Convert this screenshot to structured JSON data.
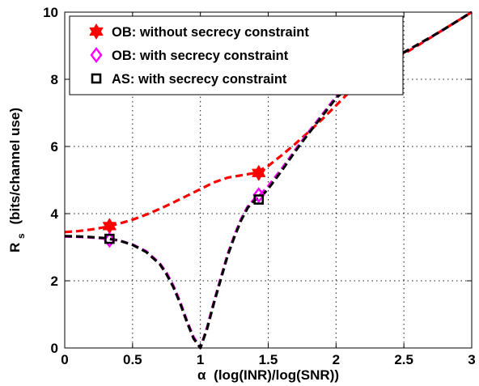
{
  "chart_data": {
    "type": "line",
    "xlabel_symbol": "α",
    "xlabel": "(log(INR)/log(SNR))",
    "ylabel_main": "R",
    "ylabel_sub": "s",
    "ylabel_unit": "(bits/channel use)",
    "xlim": [
      0,
      3
    ],
    "ylim": [
      0,
      10
    ],
    "xticks": [
      "0",
      "0.5",
      "1",
      "1.5",
      "2",
      "2.5",
      "3"
    ],
    "yticks": [
      "0",
      "2",
      "4",
      "6",
      "8",
      "10"
    ],
    "xtick_values": [
      0,
      0.5,
      1,
      1.5,
      2,
      2.5,
      3
    ],
    "ytick_values": [
      0,
      2,
      4,
      6,
      8,
      10
    ],
    "grid": true,
    "legend_position": "top-left",
    "series": [
      {
        "name": "OB: without secrecy constraint",
        "color": "#ff0000",
        "marker": "hexagram",
        "x": [
          0,
          0.1,
          0.2,
          0.3,
          0.4,
          0.5,
          0.6,
          0.7,
          0.8,
          0.9,
          1.0,
          1.1,
          1.2,
          1.3,
          1.4,
          1.5,
          1.6,
          1.7,
          1.8,
          1.9,
          2.0,
          2.1,
          2.2,
          2.3,
          2.4,
          2.5,
          2.6,
          2.7,
          2.8,
          2.9,
          3.0
        ],
        "y": [
          3.45,
          3.48,
          3.53,
          3.6,
          3.7,
          3.82,
          3.97,
          4.14,
          4.33,
          4.53,
          4.73,
          4.93,
          5.07,
          5.14,
          5.21,
          5.42,
          5.74,
          6.08,
          6.44,
          6.82,
          7.22,
          7.63,
          8.03,
          8.28,
          8.52,
          8.76,
          9.0,
          9.25,
          9.5,
          9.75,
          10.0
        ],
        "markers": {
          "x": [
            0.33,
            1.43
          ],
          "y": [
            3.63,
            5.21
          ]
        }
      },
      {
        "name": "OB: with secrecy constraint",
        "color": "#ff00ff",
        "marker": "diamond",
        "x": [
          0,
          0.1,
          0.2,
          0.3,
          0.4,
          0.5,
          0.6,
          0.7,
          0.75,
          0.8,
          0.85,
          0.9,
          0.95,
          1.0,
          1.05,
          1.1,
          1.15,
          1.2,
          1.25,
          1.3,
          1.35,
          1.4,
          1.45,
          1.5,
          1.6,
          1.7,
          1.8,
          1.9,
          2.0,
          2.1,
          2.2,
          2.3,
          2.4,
          2.5,
          2.6,
          2.7,
          2.8,
          2.9,
          3.0
        ],
        "y": [
          3.32,
          3.31,
          3.29,
          3.26,
          3.2,
          3.08,
          2.88,
          2.52,
          2.24,
          1.86,
          1.38,
          0.82,
          0.32,
          0.0,
          0.62,
          1.38,
          2.08,
          2.78,
          3.34,
          3.84,
          4.22,
          4.44,
          4.6,
          4.82,
          5.34,
          5.9,
          6.44,
          6.96,
          7.48,
          7.82,
          8.1,
          8.35,
          8.58,
          8.8,
          9.03,
          9.26,
          9.5,
          9.75,
          10.0
        ],
        "markers": {
          "x": [
            0.33,
            1.43
          ],
          "y": [
            3.22,
            4.55
          ]
        }
      },
      {
        "name": "AS: with secrecy constraint",
        "color": "#000000",
        "marker": "square",
        "x": [
          0,
          0.1,
          0.2,
          0.3,
          0.4,
          0.5,
          0.6,
          0.7,
          0.75,
          0.8,
          0.85,
          0.9,
          0.95,
          1.0,
          1.05,
          1.1,
          1.15,
          1.2,
          1.25,
          1.3,
          1.35,
          1.4,
          1.45,
          1.5,
          1.6,
          1.7,
          1.8,
          1.9,
          2.0,
          2.1,
          2.2,
          2.3,
          2.4,
          2.5,
          2.6,
          2.7,
          2.8,
          2.9,
          3.0
        ],
        "y": [
          3.33,
          3.32,
          3.3,
          3.27,
          3.2,
          3.07,
          2.86,
          2.5,
          2.2,
          1.82,
          1.34,
          0.78,
          0.28,
          0.0,
          0.58,
          1.34,
          2.04,
          2.74,
          3.3,
          3.8,
          4.18,
          4.4,
          4.52,
          4.74,
          5.28,
          5.86,
          6.4,
          6.92,
          7.44,
          7.8,
          8.08,
          8.34,
          8.57,
          8.8,
          9.03,
          9.26,
          9.5,
          9.75,
          10.0
        ],
        "markers": {
          "x": [
            0.33,
            1.43
          ],
          "y": [
            3.25,
            4.42
          ]
        }
      }
    ]
  }
}
